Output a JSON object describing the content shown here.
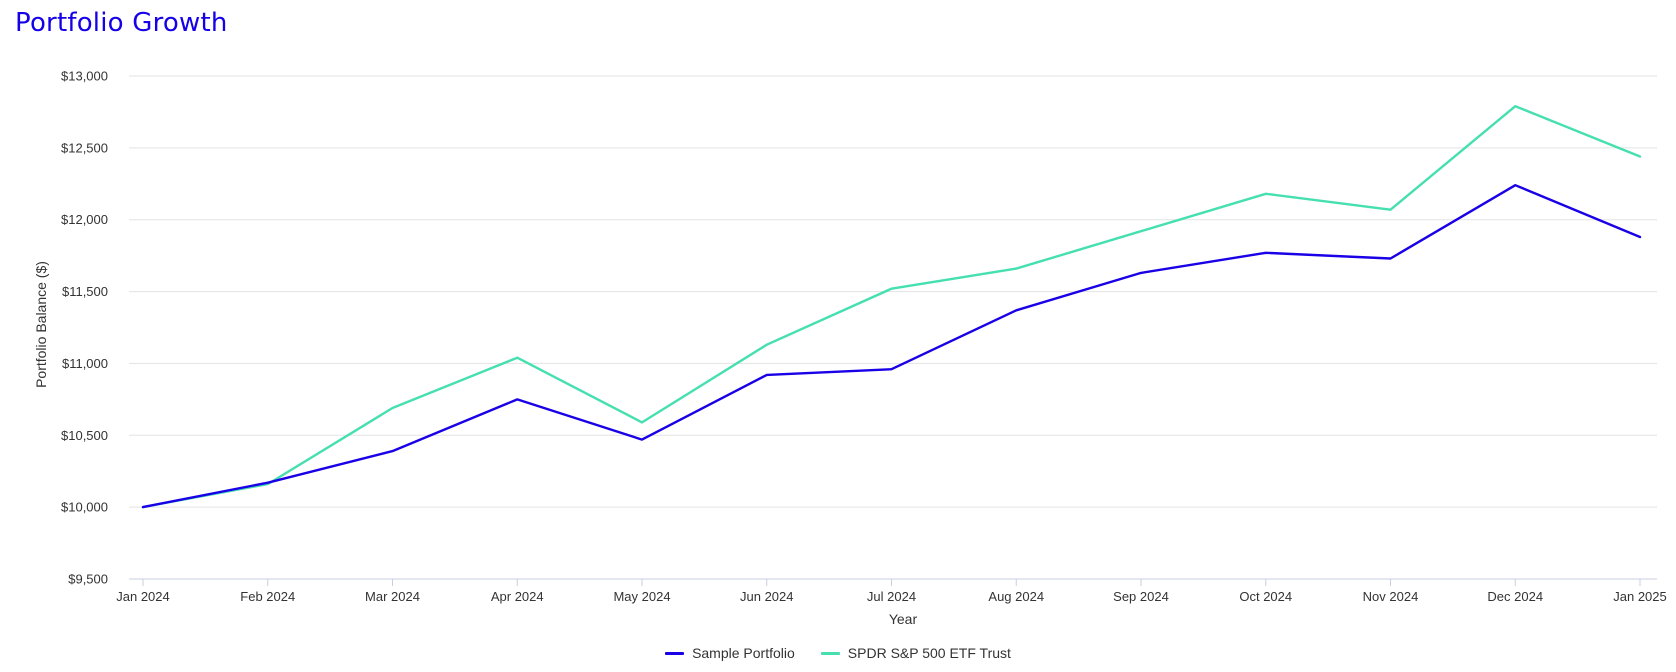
{
  "title": "Portfolio Growth",
  "chart_data": {
    "type": "line",
    "x": [
      "Jan 2024",
      "Feb 2024",
      "Mar 2024",
      "Apr 2024",
      "May 2024",
      "Jun 2024",
      "Jul 2024",
      "Aug 2024",
      "Sep 2024",
      "Oct 2024",
      "Nov 2024",
      "Dec 2024",
      "Jan 2025"
    ],
    "series": [
      {
        "name": "Sample Portfolio",
        "color": "#1a00e6",
        "values": [
          10000,
          10170,
          10390,
          10750,
          10470,
          10920,
          10960,
          11370,
          11630,
          11770,
          11730,
          12240,
          11880
        ]
      },
      {
        "name": "SPDR S&P 500 ETF Trust",
        "color": "#45dfb0",
        "values": [
          10000,
          10160,
          10690,
          11040,
          10590,
          11130,
          11520,
          11660,
          11920,
          12180,
          12070,
          12790,
          12440
        ]
      }
    ],
    "xlabel": "Year",
    "ylabel": "Portfolio Balance ($)",
    "ylim": [
      9500,
      13000
    ],
    "yticks": [
      9500,
      10000,
      10500,
      11000,
      11500,
      12000,
      12500,
      13000
    ],
    "ytick_labels": [
      "$9,500",
      "$10,000",
      "$10,500",
      "$11,000",
      "$11,500",
      "$12,000",
      "$12,500",
      "$13,000"
    ],
    "grid": true,
    "legend_position": "bottom-center"
  }
}
